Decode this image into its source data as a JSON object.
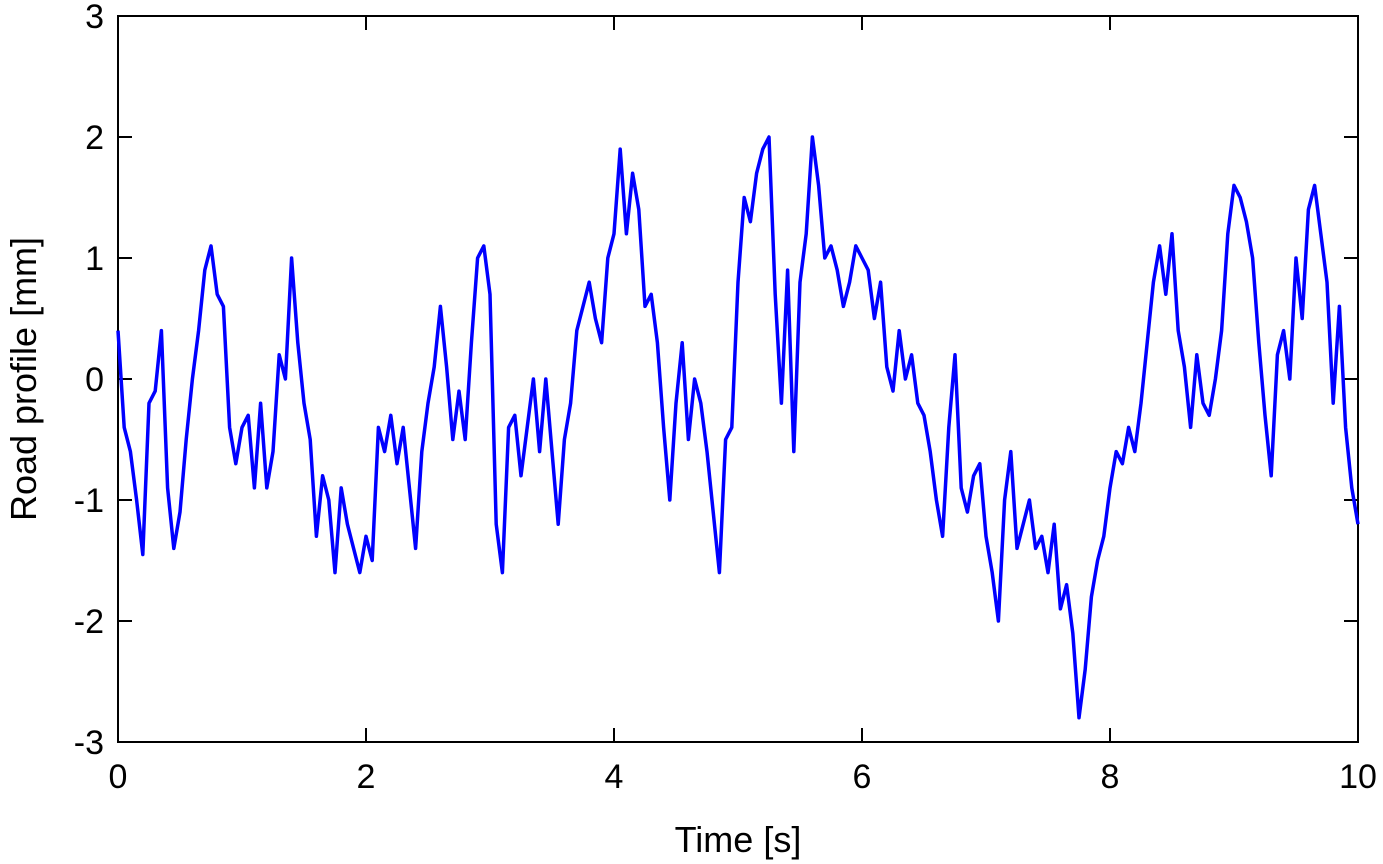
{
  "chart_data": {
    "type": "line",
    "title": "",
    "xlabel": "Time [s]",
    "ylabel": "Road profile [mm]",
    "xlim": [
      0,
      10
    ],
    "ylim": [
      -3,
      3
    ],
    "xticks": [
      "0",
      "2",
      "4",
      "6",
      "8",
      "10"
    ],
    "yticks": [
      "3",
      "2",
      "1",
      "0",
      "-1",
      "-2",
      "-3"
    ],
    "grid": false,
    "legend": "none",
    "series": [
      {
        "color": "#0000ff",
        "x": [
          0.0,
          0.05,
          0.1,
          0.15,
          0.2,
          0.25,
          0.3,
          0.35,
          0.4,
          0.45,
          0.5,
          0.55,
          0.6,
          0.65,
          0.7,
          0.75,
          0.8,
          0.85,
          0.9,
          0.95,
          1.0,
          1.05,
          1.1,
          1.15,
          1.2,
          1.25,
          1.3,
          1.35,
          1.4,
          1.45,
          1.5,
          1.55,
          1.6,
          1.65,
          1.7,
          1.75,
          1.8,
          1.85,
          1.9,
          1.95,
          2.0,
          2.05,
          2.1,
          2.15,
          2.2,
          2.25,
          2.3,
          2.35,
          2.4,
          2.45,
          2.5,
          2.55,
          2.6,
          2.65,
          2.7,
          2.75,
          2.8,
          2.85,
          2.9,
          2.95,
          3.0,
          3.05,
          3.1,
          3.15,
          3.2,
          3.25,
          3.3,
          3.35,
          3.4,
          3.45,
          3.5,
          3.55,
          3.6,
          3.65,
          3.7,
          3.75,
          3.8,
          3.85,
          3.9,
          3.95,
          4.0,
          4.05,
          4.1,
          4.15,
          4.2,
          4.25,
          4.3,
          4.35,
          4.4,
          4.45,
          4.5,
          4.55,
          4.6,
          4.65,
          4.7,
          4.75,
          4.8,
          4.85,
          4.9,
          4.95,
          5.0,
          5.05,
          5.1,
          5.15,
          5.2,
          5.25,
          5.3,
          5.35,
          5.4,
          5.45,
          5.5,
          5.55,
          5.6,
          5.65,
          5.7,
          5.75,
          5.8,
          5.85,
          5.9,
          5.95,
          6.0,
          6.05,
          6.1,
          6.15,
          6.2,
          6.25,
          6.3,
          6.35,
          6.4,
          6.45,
          6.5,
          6.55,
          6.6,
          6.65,
          6.7,
          6.75,
          6.8,
          6.85,
          6.9,
          6.95,
          7.0,
          7.05,
          7.1,
          7.15,
          7.2,
          7.25,
          7.3,
          7.35,
          7.4,
          7.45,
          7.5,
          7.55,
          7.6,
          7.65,
          7.7,
          7.75,
          7.8,
          7.85,
          7.9,
          7.95,
          8.0,
          8.05,
          8.1,
          8.15,
          8.2,
          8.25,
          8.3,
          8.35,
          8.4,
          8.45,
          8.5,
          8.55,
          8.6,
          8.65,
          8.7,
          8.75,
          8.8,
          8.85,
          8.9,
          8.95,
          9.0,
          9.05,
          9.1,
          9.15,
          9.2,
          9.25,
          9.3,
          9.35,
          9.4,
          9.45,
          9.5,
          9.55,
          9.6,
          9.65,
          9.7,
          9.75,
          9.8,
          9.85,
          9.9,
          9.95,
          10.0
        ],
        "y": [
          0.4,
          -0.4,
          -0.6,
          -1.0,
          -1.45,
          -0.2,
          -0.1,
          0.4,
          -0.9,
          -1.4,
          -1.1,
          -0.5,
          0.0,
          0.4,
          0.9,
          1.1,
          0.7,
          0.6,
          -0.4,
          -0.7,
          -0.4,
          -0.3,
          -0.9,
          -0.2,
          -0.9,
          -0.6,
          0.2,
          0.0,
          1.0,
          0.3,
          -0.2,
          -0.5,
          -1.3,
          -0.8,
          -1.0,
          -1.6,
          -0.9,
          -1.2,
          -1.4,
          -1.6,
          -1.3,
          -1.5,
          -0.4,
          -0.6,
          -0.3,
          -0.7,
          -0.4,
          -0.9,
          -1.4,
          -0.6,
          -0.2,
          0.1,
          0.6,
          0.1,
          -0.5,
          -0.1,
          -0.5,
          0.3,
          1.0,
          1.1,
          0.7,
          -1.2,
          -1.6,
          -0.4,
          -0.3,
          -0.8,
          -0.4,
          0.0,
          -0.6,
          0.0,
          -0.6,
          -1.2,
          -0.5,
          -0.2,
          0.4,
          0.6,
          0.8,
          0.5,
          0.3,
          1.0,
          1.2,
          1.9,
          1.2,
          1.7,
          1.4,
          0.6,
          0.7,
          0.3,
          -0.4,
          -1.0,
          -0.2,
          0.3,
          -0.5,
          0.0,
          -0.2,
          -0.6,
          -1.1,
          -1.6,
          -0.5,
          -0.4,
          0.8,
          1.5,
          1.3,
          1.7,
          1.9,
          2.0,
          0.7,
          -0.2,
          0.9,
          -0.6,
          0.8,
          1.2,
          2.0,
          1.6,
          1.0,
          1.1,
          0.9,
          0.6,
          0.8,
          1.1,
          1.0,
          0.9,
          0.5,
          0.8,
          0.1,
          -0.1,
          0.4,
          0.0,
          0.2,
          -0.2,
          -0.3,
          -0.6,
          -1.0,
          -1.3,
          -0.4,
          0.2,
          -0.9,
          -1.1,
          -0.8,
          -0.7,
          -1.3,
          -1.6,
          -2.0,
          -1.0,
          -0.6,
          -1.4,
          -1.2,
          -1.0,
          -1.4,
          -1.3,
          -1.6,
          -1.2,
          -1.9,
          -1.7,
          -2.1,
          -2.8,
          -2.4,
          -1.8,
          -1.5,
          -1.3,
          -0.9,
          -0.6,
          -0.7,
          -0.4,
          -0.6,
          -0.2,
          0.3,
          0.8,
          1.1,
          0.7,
          1.2,
          0.4,
          0.1,
          -0.4,
          0.2,
          -0.2,
          -0.3,
          0.0,
          0.4,
          1.2,
          1.6,
          1.5,
          1.3,
          1.0,
          0.3,
          -0.3,
          -0.8,
          0.2,
          0.4,
          0.0,
          1.0,
          0.5,
          1.4,
          1.6,
          1.2,
          0.8,
          -0.2,
          0.6,
          -0.4,
          -0.9,
          -1.2
        ]
      }
    ]
  }
}
